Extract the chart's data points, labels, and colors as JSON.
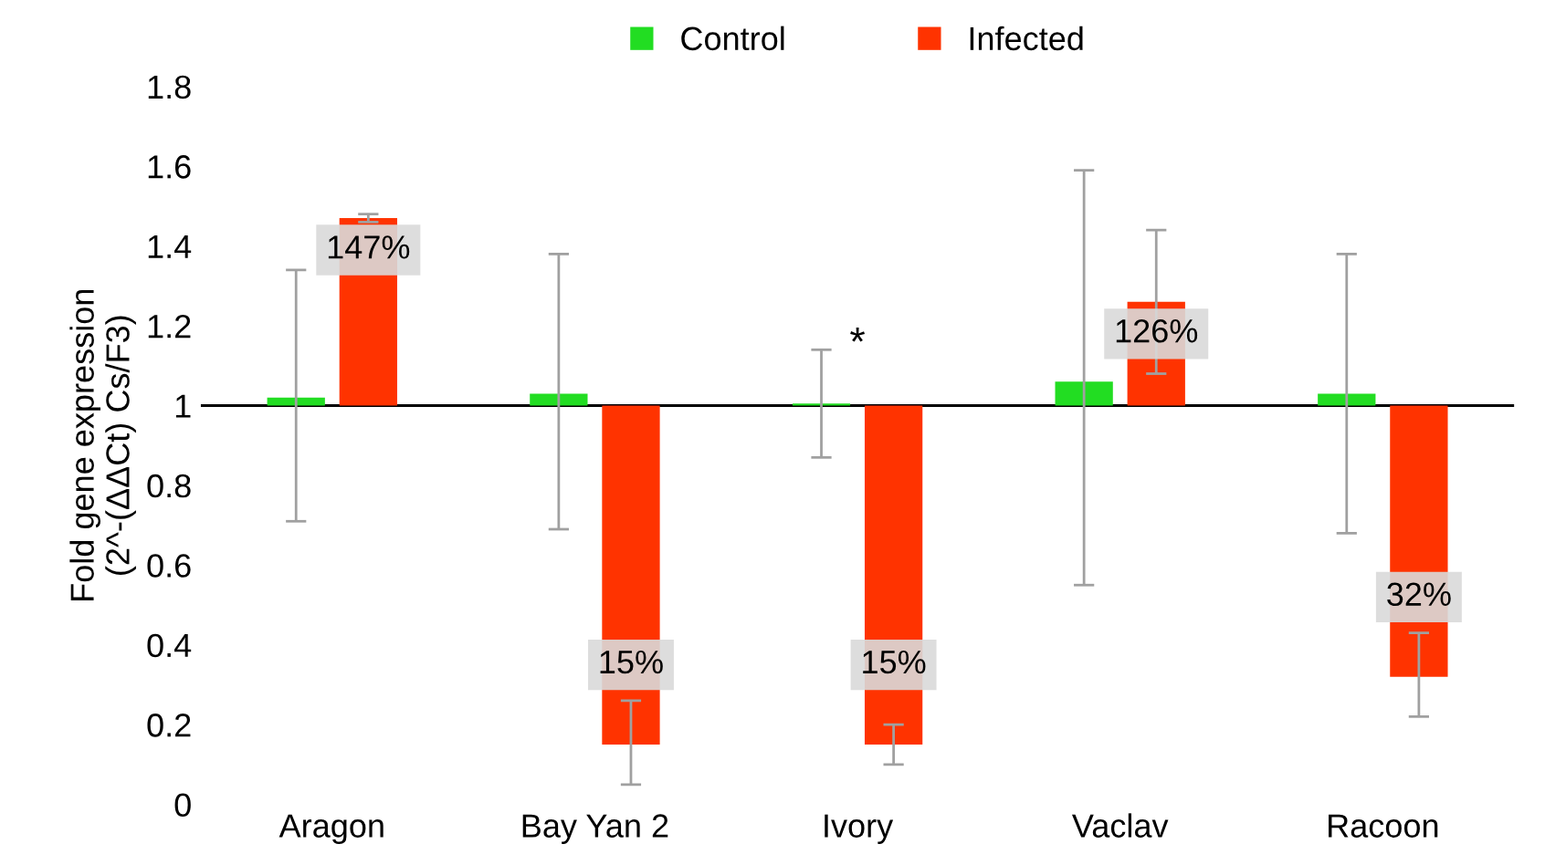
{
  "chart_data": {
    "type": "bar",
    "ylabel": "Fold gene expression\n(2^-(ΔΔCt) Cs/F3)",
    "categories": [
      "Aragon",
      "Bay Yan 2",
      "Ivory",
      "Vaclav",
      "Racoon"
    ],
    "series": [
      {
        "name": "Control",
        "color": "#22dd22",
        "base": [
          1,
          1,
          1,
          1,
          1
        ],
        "values": [
          0.02,
          0.03,
          0.005,
          0.06,
          0.03
        ],
        "errors": [
          [
            0.71,
            1.34
          ],
          [
            0.69,
            1.38
          ],
          [
            0.87,
            1.14
          ],
          [
            0.55,
            1.59
          ],
          [
            0.68,
            1.38
          ]
        ]
      },
      {
        "name": "Infected",
        "color": "#ff3300",
        "base": [
          1,
          1,
          1,
          1,
          1
        ],
        "values": [
          0.47,
          -0.85,
          -0.85,
          0.26,
          -0.68
        ],
        "errors": [
          [
            1.46,
            1.48
          ],
          [
            0.05,
            0.26
          ],
          [
            0.1,
            0.2
          ],
          [
            1.08,
            1.44
          ],
          [
            0.22,
            0.43
          ]
        ],
        "value_labels": [
          "147%",
          "15%",
          "15%",
          "126%",
          "32%"
        ]
      }
    ],
    "annotations": [
      "*"
    ],
    "ref_lines": [
      {
        "axis": "y",
        "value": 1,
        "color": "#000000"
      }
    ],
    "ylim": [
      0,
      1.8
    ],
    "yticks": [
      0,
      0.2,
      0.4,
      0.6,
      0.8,
      1,
      1.2,
      1.4,
      1.6,
      1.8
    ],
    "grid": false,
    "legend": "top"
  }
}
